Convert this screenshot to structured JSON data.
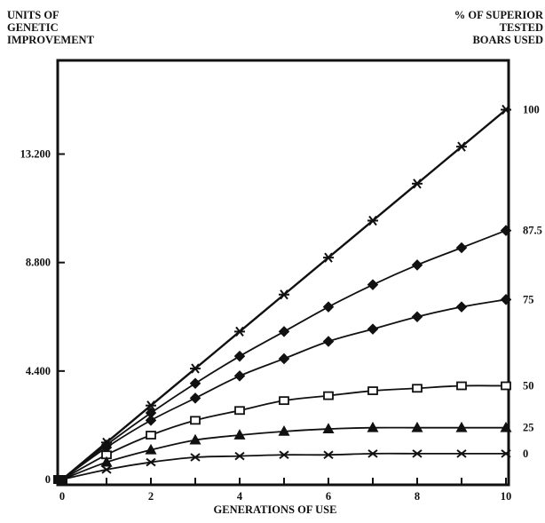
{
  "chart_data": {
    "type": "line",
    "ylabel": [
      "UNITS OF",
      "GENETIC",
      "IMPROVEMENT"
    ],
    "right_axis_label": [
      "% OF SUPERIOR",
      "TESTED",
      "BOARS USED"
    ],
    "xlabel": "GENERATIONS OF USE",
    "x": [
      0,
      1,
      2,
      3,
      4,
      5,
      6,
      7,
      8,
      9,
      10
    ],
    "x_ticks": [
      0,
      2,
      4,
      6,
      8,
      10
    ],
    "x_tick_labels": [
      "0",
      "2",
      "4",
      "6",
      "8",
      "10"
    ],
    "y_ticks": [
      0,
      4.4,
      8.8,
      13.2
    ],
    "y_tick_labels": [
      "0",
      "4.400",
      "8.800",
      "13.200"
    ],
    "xlim": [
      0,
      10
    ],
    "ylim": [
      0,
      17
    ],
    "series": [
      {
        "name": "100",
        "marker": "star",
        "values": [
          0,
          1.5,
          3.0,
          4.5,
          6.0,
          7.5,
          9.0,
          10.5,
          12.0,
          13.5,
          15.0
        ]
      },
      {
        "name": "87.5",
        "marker": "diamond",
        "values": [
          0,
          1.4,
          2.7,
          3.9,
          5.0,
          6.0,
          7.0,
          7.9,
          8.7,
          9.4,
          10.1
        ]
      },
      {
        "name": "75",
        "marker": "filled-diamond",
        "values": [
          0,
          1.3,
          2.4,
          3.3,
          4.2,
          4.9,
          5.6,
          6.1,
          6.6,
          7.0,
          7.3
        ]
      },
      {
        "name": "50",
        "marker": "square",
        "values": [
          0,
          1.0,
          1.8,
          2.4,
          2.8,
          3.2,
          3.4,
          3.6,
          3.7,
          3.8,
          3.8
        ]
      },
      {
        "name": "25",
        "marker": "triangle",
        "values": [
          0,
          0.7,
          1.2,
          1.6,
          1.8,
          1.95,
          2.05,
          2.1,
          2.1,
          2.1,
          2.1
        ]
      },
      {
        "name": "0",
        "marker": "x",
        "values": [
          0,
          0.4,
          0.7,
          0.9,
          0.95,
          1.0,
          1.0,
          1.05,
          1.05,
          1.05,
          1.05
        ]
      }
    ],
    "grid": false,
    "legend": "right-side labels"
  }
}
